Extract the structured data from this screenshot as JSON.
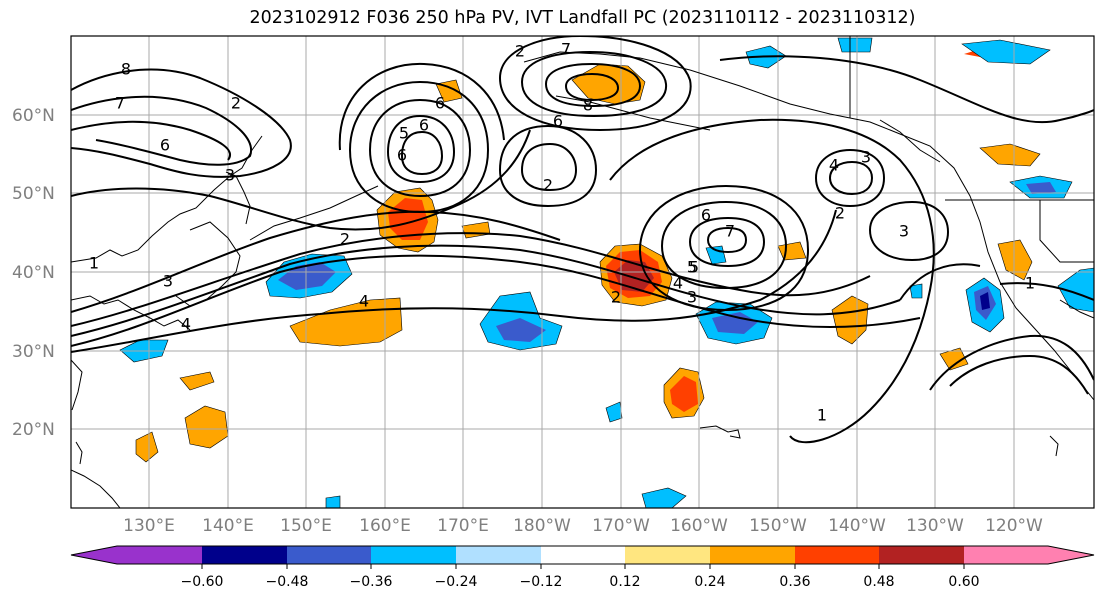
{
  "title": "2023102912 F036 250 hPa PV, IVT Landfall PC (2023110112 - 2023110312)",
  "lat_labels": [
    "60°N",
    "50°N",
    "40°N",
    "30°N",
    "20°N"
  ],
  "lon_labels": [
    "130°E",
    "140°E",
    "150°E",
    "160°E",
    "170°E",
    "180°W",
    "170°W",
    "160°W",
    "150°W",
    "140°W",
    "130°W",
    "120°W"
  ],
  "colorbar": {
    "ticks": [
      "−0.60",
      "−0.48",
      "−0.36",
      "−0.24",
      "−0.12",
      "0.12",
      "0.24",
      "0.36",
      "0.48",
      "0.60"
    ],
    "colors": [
      "#9932cc",
      "#00008b",
      "#3a5bcc",
      "#00bfff",
      "#b0e0ff",
      "#ffffff",
      "#ffe680",
      "#ffa500",
      "#ff4000",
      "#b22222",
      "#ff80b0"
    ]
  },
  "contour_labels": [
    "8",
    "7",
    "6",
    "3",
    "2",
    "1",
    "3",
    "4",
    "2",
    "6",
    "5",
    "6",
    "7",
    "8",
    "6",
    "2",
    "7",
    "5",
    "6",
    "2",
    "2",
    "6",
    "1",
    "5",
    "4",
    "3",
    "2",
    "4",
    "3",
    "3",
    "1",
    "4"
  ]
}
